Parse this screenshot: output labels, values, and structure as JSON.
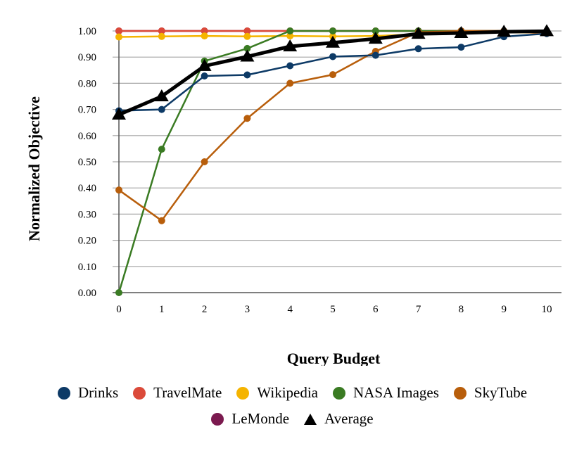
{
  "chart_data": {
    "type": "line",
    "title": "",
    "xlabel": "Query Budget",
    "ylabel": "Normalized Objective",
    "x": [
      0,
      1,
      2,
      3,
      4,
      5,
      6,
      7,
      8,
      9,
      10
    ],
    "xticks": [
      "0",
      "1",
      "2",
      "3",
      "4",
      "5",
      "6",
      "7",
      "8",
      "9",
      "10"
    ],
    "ylim": [
      0,
      1
    ],
    "yticks": [
      "0.00",
      "0.10",
      "0.20",
      "0.30",
      "0.40",
      "0.50",
      "0.60",
      "0.70",
      "0.80",
      "0.90",
      "1.00"
    ],
    "grid": "horizontal",
    "legend_position": "bottom",
    "series": [
      {
        "name": "Drinks",
        "color": "#0d3a66",
        "marker": "circle",
        "values": [
          0.695,
          0.7,
          0.828,
          0.832,
          0.867,
          0.902,
          0.907,
          0.932,
          0.938,
          0.978,
          0.99
        ]
      },
      {
        "name": "TravelMate",
        "color": "#db4a3a",
        "marker": "circle",
        "values": [
          1.0,
          1.0,
          1.0,
          1.0,
          1.0,
          1.0,
          1.0,
          1.0,
          1.0,
          1.0,
          1.0
        ]
      },
      {
        "name": "Wikipedia",
        "color": "#f5b400",
        "marker": "circle",
        "values": [
          0.977,
          0.979,
          0.981,
          0.979,
          0.981,
          0.979,
          0.981,
          0.988,
          0.99,
          0.995,
          0.993
        ]
      },
      {
        "name": "NASA Images",
        "color": "#3a7b23",
        "marker": "circle",
        "values": [
          0.0,
          0.548,
          0.885,
          0.933,
          1.0,
          1.0,
          1.0,
          1.0,
          1.0,
          1.0,
          1.0
        ]
      },
      {
        "name": "SkyTube",
        "color": "#b85e0b",
        "marker": "circle",
        "values": [
          0.392,
          0.275,
          0.5,
          0.666,
          0.8,
          0.833,
          0.922,
          0.995,
          1.0,
          1.0,
          0.99
        ]
      },
      {
        "name": "LeMonde",
        "color": "#7b1a4f",
        "marker": "circle",
        "values": [
          1.0,
          1.0,
          1.0,
          1.0,
          1.0,
          1.0,
          1.0,
          1.0,
          1.0,
          1.0,
          1.0
        ]
      },
      {
        "name": "Average",
        "color": "#000000",
        "marker": "triangle",
        "values": [
          0.68,
          0.75,
          0.866,
          0.902,
          0.941,
          0.955,
          0.97,
          0.989,
          0.992,
          0.997,
          0.999
        ]
      }
    ]
  }
}
